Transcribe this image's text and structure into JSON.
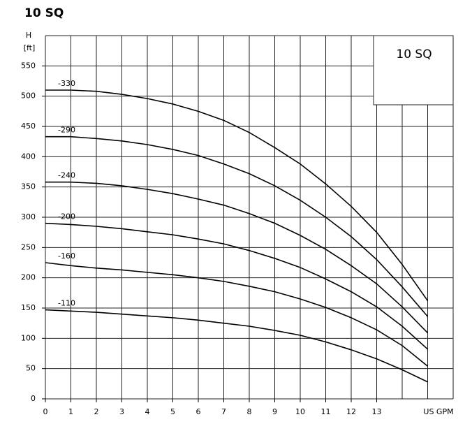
{
  "chart_data": {
    "type": "line",
    "title": "10 SQ",
    "box_label": "10 SQ",
    "y_label": "H",
    "y_unit": "[ft]",
    "x_label": "US GPM",
    "xlim": [
      0,
      16
    ],
    "ylim": [
      0,
      600
    ],
    "xticks": [
      0,
      1,
      2,
      3,
      4,
      5,
      6,
      7,
      8,
      9,
      10,
      11,
      12,
      13
    ],
    "xgrid": [
      0,
      1,
      2,
      3,
      4,
      5,
      6,
      7,
      8,
      9,
      10,
      11,
      12,
      13,
      14,
      15,
      16
    ],
    "yticks": [
      0,
      50,
      100,
      150,
      200,
      250,
      300,
      350,
      400,
      450,
      500,
      550
    ],
    "grid": true,
    "color": "#000000",
    "x": [
      0,
      1,
      2,
      3,
      4,
      5,
      6,
      7,
      8,
      9,
      10,
      11,
      12,
      13,
      14,
      15
    ],
    "series": [
      {
        "name": "-330",
        "values": [
          510,
          510,
          508,
          503,
          496,
          487,
          475,
          460,
          440,
          415,
          388,
          355,
          318,
          275,
          222,
          162
        ]
      },
      {
        "name": "-290",
        "values": [
          433,
          433,
          430,
          426,
          420,
          412,
          402,
          388,
          372,
          352,
          328,
          300,
          268,
          230,
          185,
          136
        ]
      },
      {
        "name": "-240",
        "values": [
          358,
          358,
          356,
          352,
          346,
          339,
          330,
          320,
          306,
          290,
          270,
          247,
          220,
          190,
          152,
          109
        ]
      },
      {
        "name": "-200",
        "values": [
          290,
          288,
          285,
          281,
          276,
          271,
          264,
          256,
          245,
          232,
          217,
          198,
          177,
          152,
          120,
          82
        ]
      },
      {
        "name": "-160",
        "values": [
          225,
          220,
          216,
          213,
          209,
          205,
          200,
          194,
          186,
          177,
          165,
          151,
          134,
          114,
          88,
          54
        ]
      },
      {
        "name": "-110",
        "values": [
          147,
          145,
          143,
          140,
          137,
          134,
          130,
          125,
          120,
          113,
          105,
          94,
          81,
          66,
          48,
          28
        ]
      }
    ]
  }
}
